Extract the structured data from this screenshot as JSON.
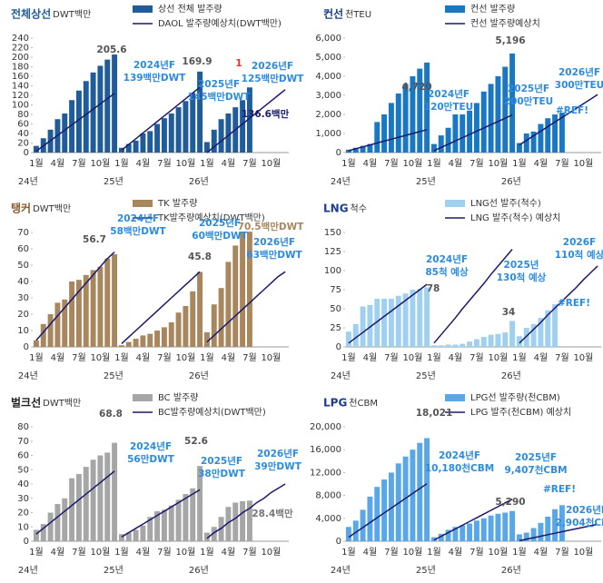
{
  "chart_data": [
    {
      "type": "bar",
      "title": "전체상선",
      "unit": "DWT백만",
      "title_color": "#1f5c99",
      "categories": [
        "1월",
        null,
        null,
        "4월",
        null,
        null,
        "7월",
        null,
        null,
        "10월",
        null,
        null,
        "1월",
        null,
        null,
        "4월",
        null,
        null,
        "7월",
        null,
        null,
        "10월",
        null,
        null,
        "1월",
        null,
        null,
        "4월",
        null,
        null,
        "7월",
        null,
        null,
        "10월",
        null,
        null
      ],
      "year_labels": [
        "24년",
        "25년",
        "26년"
      ],
      "series": [
        {
          "name": "상선 전체 발주량",
          "color": "#1f5c99",
          "values": [
            14,
            30,
            48,
            70,
            82,
            110,
            130,
            150,
            168,
            182,
            195,
            205.6,
            10,
            18,
            25,
            40,
            45,
            60,
            72,
            82,
            95,
            108,
            125,
            169.9,
            22,
            48,
            70,
            82,
            95,
            110,
            136.6,
            null,
            null,
            null,
            null,
            null
          ]
        },
        {
          "name": "DAOL 발주량예상치(DWT백만)",
          "type": "line",
          "color": "#1a1a6e",
          "values": [
            3,
            14,
            25,
            36,
            47,
            58,
            69,
            80,
            91,
            102,
            113,
            124,
            5,
            17,
            29,
            41,
            53,
            65,
            77,
            89,
            101,
            113,
            125,
            137,
            0,
            12,
            24,
            36,
            48,
            60,
            72,
            84,
            96,
            108,
            120,
            132
          ]
        }
      ],
      "ylim": [
        0,
        240
      ],
      "yticks": [
        0,
        20,
        40,
        60,
        80,
        100,
        120,
        140,
        160,
        180,
        200,
        220,
        240
      ],
      "annotations": [
        {
          "text": [
            "205.6"
          ],
          "color": "#555555"
        },
        {
          "text": [
            "2024년F",
            "139백만DWT"
          ],
          "color": "#2a8be0"
        },
        {
          "text": [
            "169.9"
          ],
          "color": "#555555"
        },
        {
          "text": [
            "1"
          ],
          "color": "#e03030"
        },
        {
          "text": [
            "2025년F",
            "145백만DWT"
          ],
          "color": "#2a8be0"
        },
        {
          "text": [
            "2026년F",
            "125백만DWT"
          ],
          "color": "#2a8be0"
        },
        {
          "text": [
            "136.6백만"
          ],
          "color": "#1a1a6e"
        }
      ]
    },
    {
      "type": "bar",
      "title": "컨선",
      "unit": "천TEU",
      "title_color": "#1a3d8c",
      "categories": [
        "1월",
        null,
        null,
        "4월",
        null,
        null,
        "7월",
        null,
        null,
        "10월",
        null,
        null,
        "1월",
        null,
        null,
        "4월",
        null,
        null,
        "7월",
        null,
        null,
        "10월",
        null,
        null,
        "1월",
        null,
        null,
        "4월",
        null,
        null,
        "7월",
        null,
        null,
        "10월",
        null,
        null
      ],
      "year_labels": [
        "24년",
        "25년",
        "26년"
      ],
      "series": [
        {
          "name": "컨선 발주량",
          "color": "#1a78c2",
          "values": [
            150,
            250,
            350,
            450,
            1600,
            2000,
            2600,
            3100,
            3600,
            4000,
            4400,
            4720,
            450,
            900,
            1300,
            2000,
            2000,
            2200,
            2600,
            3200,
            3600,
            4000,
            4500,
            5196,
            500,
            1000,
            1100,
            1500,
            1800,
            2000,
            2100,
            null,
            null,
            null,
            null,
            null
          ]
        },
        {
          "name": "컨선 발주량예상치",
          "type": "line",
          "color": "#1a1a6e",
          "values": [
            100,
            200,
            300,
            400,
            500,
            600,
            700,
            800,
            900,
            1000,
            1100,
            1200,
            100,
            270,
            440,
            610,
            780,
            950,
            1120,
            1290,
            1460,
            1630,
            1800,
            1970,
            400,
            640,
            880,
            1120,
            1360,
            1600,
            1840,
            2080,
            2320,
            2560,
            2800,
            3040
          ]
        }
      ],
      "ylim": [
        0,
        6000
      ],
      "yticks": [
        0,
        {
          "value": 1000,
          "label": "1,000"
        },
        {
          "value": 2000,
          "label": "2,000"
        },
        {
          "value": 3000,
          "label": "3,000"
        },
        {
          "value": 4000,
          "label": "4,000"
        },
        {
          "value": 5000,
          "label": "5,000"
        },
        {
          "value": 6000,
          "label": "6,000"
        }
      ],
      "annotations": [
        {
          "text": [
            "4,720"
          ],
          "color": "#555555"
        },
        {
          "text": [
            "5,196"
          ],
          "color": "#555555"
        },
        {
          "text": [
            "2024년F",
            "120만TEU"
          ],
          "color": "#2a8be0"
        },
        {
          "text": [
            "2025년F",
            "200만TEU"
          ],
          "color": "#2a8be0"
        },
        {
          "text": [
            "2026년F",
            "300만TEU"
          ],
          "color": "#2a8be0"
        },
        {
          "text": [
            "#REF!"
          ],
          "color": "#2a8be0"
        }
      ]
    },
    {
      "type": "bar",
      "title": "탱커",
      "unit": "DWT백만",
      "title_color": "#8b5a2b",
      "categories": [
        "1월",
        null,
        null,
        "4월",
        null,
        null,
        "7월",
        null,
        null,
        "10월",
        null,
        null,
        "1월",
        null,
        null,
        "4월",
        null,
        null,
        "7월",
        null,
        null,
        "10월",
        null,
        null,
        "1월",
        null,
        null,
        "4월",
        null,
        null,
        "7월",
        null,
        null,
        "10월",
        null,
        null
      ],
      "year_labels": [
        "24년",
        "25년",
        "26년"
      ],
      "series": [
        {
          "name": "TK 발주량",
          "color": "#a8875e",
          "values": [
            4,
            14,
            20,
            27,
            29,
            40,
            41,
            44,
            47,
            49,
            54,
            56.7,
            1,
            3,
            5,
            7,
            8,
            10,
            12,
            15,
            21,
            25,
            34,
            45.8,
            9,
            26,
            36,
            52,
            62,
            70.5,
            70.5,
            null,
            null,
            null,
            null,
            null
          ]
        },
        {
          "name": "TK발주량예상치(DWT백만)",
          "type": "line",
          "color": "#1a1a6e",
          "values": [
            4,
            9,
            14,
            19,
            24,
            29,
            34,
            39,
            44,
            49,
            54,
            58,
            2,
            6,
            10,
            14,
            18,
            22,
            26,
            30,
            34,
            38,
            42,
            46,
            3,
            7,
            11,
            15,
            19,
            23,
            27,
            31,
            35,
            39,
            43,
            46
          ]
        }
      ],
      "ylim": [
        0,
        70
      ],
      "yticks": [
        0,
        10,
        20,
        30,
        40,
        50,
        60,
        70
      ],
      "annotations": [
        {
          "text": [
            "2024년F",
            "58백만DWT"
          ],
          "color": "#2a8be0"
        },
        {
          "text": [
            "56.7"
          ],
          "color": "#555555"
        },
        {
          "text": [
            "2025년F",
            "60백만DWT"
          ],
          "color": "#2a8be0"
        },
        {
          "text": [
            "45.8"
          ],
          "color": "#555555"
        },
        {
          "text": [
            "70.5백만DWT"
          ],
          "color": "#a8875e"
        },
        {
          "text": [
            "2026년F",
            "63백만DWT"
          ],
          "color": "#2a8be0"
        }
      ]
    },
    {
      "type": "bar",
      "title": "LNG",
      "unit": "척수",
      "title_color": "#1a3d8c",
      "categories": [
        "1월",
        null,
        null,
        "4월",
        null,
        null,
        "7월",
        null,
        null,
        "10월",
        null,
        null,
        "1월",
        null,
        null,
        "4월",
        null,
        null,
        "7월",
        null,
        null,
        "10월",
        null,
        null,
        "1월",
        null,
        null,
        "4월",
        null,
        null,
        "7월",
        null,
        null,
        "10월",
        null,
        null
      ],
      "year_labels": [
        "24년",
        "25년",
        "26년"
      ],
      "series": [
        {
          "name": "LNG선 발주(척수)",
          "color": "#9fd0f0",
          "values": [
            20,
            30,
            53,
            55,
            63,
            63,
            63,
            67,
            70,
            75,
            76,
            78,
            2,
            2,
            3,
            3,
            4,
            7,
            10,
            13,
            16,
            17,
            19,
            34,
            14,
            25,
            30,
            38,
            48,
            56,
            null,
            null,
            null,
            null,
            null,
            null
          ]
        },
        {
          "name": "LNG 발주(척수) 예상치",
          "type": "line",
          "color": "#1a1a6e",
          "values": [
            5,
            12,
            19,
            26,
            33,
            40,
            47,
            54,
            61,
            68,
            75,
            82,
            5,
            16,
            27,
            38,
            50,
            61,
            72,
            83,
            95,
            106,
            117,
            128,
            5,
            14,
            23,
            32,
            42,
            51,
            60,
            69,
            78,
            88,
            97,
            106
          ]
        }
      ],
      "ylim": [
        0,
        150
      ],
      "yticks": [
        0,
        25,
        50,
        75,
        100,
        125,
        150
      ],
      "annotations": [
        {
          "text": [
            "2024년F",
            "85척 예상"
          ],
          "color": "#2a8be0"
        },
        {
          "text": [
            "78"
          ],
          "color": "#555555"
        },
        {
          "text": [
            "2025년",
            "130척 예상"
          ],
          "color": "#2a8be0"
        },
        {
          "text": [
            "2026F",
            "110척 예상"
          ],
          "color": "#2a8be0"
        },
        {
          "text": [
            "34"
          ],
          "color": "#555555"
        },
        {
          "text": [
            "#REF!"
          ],
          "color": "#2a8be0"
        }
      ]
    },
    {
      "type": "bar",
      "title": "벌크선",
      "unit": "DWT백만",
      "title_color": "#222222",
      "categories": [
        "1월",
        null,
        null,
        "4월",
        null,
        null,
        "7월",
        null,
        null,
        "10월",
        null,
        null,
        "1월",
        null,
        null,
        "4월",
        null,
        null,
        "7월",
        null,
        null,
        "10월",
        null,
        null,
        "1월",
        null,
        null,
        "4월",
        null,
        null,
        "7월",
        null,
        null,
        "10월",
        null,
        null
      ],
      "year_labels": [
        "24년",
        "25년",
        "26년"
      ],
      "series": [
        {
          "name": "BC 발주량",
          "color": "#a6a6a6",
          "values": [
            8,
            12,
            20,
            26,
            30,
            44,
            47,
            52,
            57,
            60,
            62,
            68.8,
            5,
            6,
            8,
            11,
            17,
            21,
            22,
            25,
            29,
            33,
            37,
            52.6,
            6,
            10,
            17,
            24,
            27,
            28,
            28.4,
            null,
            null,
            null,
            null,
            null
          ]
        },
        {
          "name": "BC발주량예상치(DWT백만)",
          "type": "line",
          "color": "#1a1a6e",
          "values": [
            5,
            9,
            13,
            17,
            21,
            25,
            29,
            33,
            37,
            41,
            45,
            49,
            3,
            6,
            9,
            12,
            15,
            18,
            21,
            24,
            27,
            30,
            33,
            36,
            2,
            6,
            9,
            13,
            16,
            20,
            23,
            27,
            30,
            34,
            37,
            40
          ]
        }
      ],
      "ylim": [
        0,
        80
      ],
      "yticks": [
        0,
        10,
        20,
        30,
        40,
        50,
        60,
        70,
        80
      ],
      "annotations": [
        {
          "text": [
            "68.8"
          ],
          "color": "#555555"
        },
        {
          "text": [
            "2024년F",
            "56만DWT"
          ],
          "color": "#2a8be0"
        },
        {
          "text": [
            "52.6"
          ],
          "color": "#555555"
        },
        {
          "text": [
            "2025년F",
            "38만DWT"
          ],
          "color": "#2a8be0"
        },
        {
          "text": [
            "2026년F",
            "39만DWT"
          ],
          "color": "#2a8be0"
        },
        {
          "text": [
            "28.4백만"
          ],
          "color": "#777777"
        }
      ]
    },
    {
      "type": "bar",
      "title": "LPG",
      "unit": "천CBM",
      "title_color": "#1a3d8c",
      "categories": [
        "1월",
        null,
        null,
        "4월",
        null,
        null,
        "7월",
        null,
        null,
        "10월",
        null,
        null,
        "1월",
        null,
        null,
        "4월",
        null,
        null,
        "7월",
        null,
        null,
        "10월",
        null,
        null,
        "1월",
        null,
        null,
        "4월",
        null,
        null,
        "7월",
        null,
        null,
        "10월",
        null,
        null
      ],
      "year_labels": [
        "24년",
        "25년",
        "26년"
      ],
      "series": [
        {
          "name": "LPG선 발주량(천CBM)",
          "color": "#5aa7e8",
          "values": [
            2500,
            3600,
            5500,
            7800,
            9500,
            10800,
            12000,
            13600,
            14800,
            16000,
            17200,
            18021,
            700,
            1300,
            2000,
            2500,
            2800,
            3100,
            3600,
            4000,
            4500,
            4800,
            5000,
            5290,
            1200,
            1500,
            2300,
            3200,
            4300,
            5600,
            6300,
            null,
            null,
            null,
            null,
            null
          ]
        },
        {
          "name": "LPG 발주(천CBM) 예상치",
          "type": "line",
          "color": "#1a1a6e",
          "values": [
            700,
            1550,
            2400,
            3250,
            4100,
            4950,
            5800,
            6650,
            7500,
            8350,
            9200,
            10050,
            200,
            850,
            1500,
            2150,
            2800,
            3450,
            4100,
            4750,
            5400,
            6050,
            6700,
            7350,
            100,
            360,
            620,
            880,
            1140,
            1400,
            1660,
            1920,
            2180,
            2440,
            2700,
            2960
          ]
        }
      ],
      "ylim": [
        0,
        20000
      ],
      "yticks": [
        0,
        {
          "value": 4000,
          "label": "4,000"
        },
        {
          "value": 8000,
          "label": "8,000"
        },
        {
          "value": 12000,
          "label": "12,000"
        },
        {
          "value": 16000,
          "label": "16,000"
        },
        {
          "value": 20000,
          "label": "20,000"
        }
      ],
      "annotations": [
        {
          "text": [
            "18,021"
          ],
          "color": "#555555"
        },
        {
          "text": [
            "2024년F",
            "10,180천CBM"
          ],
          "color": "#2a8be0"
        },
        {
          "text": [
            "2025년F",
            "9,407천CBM"
          ],
          "color": "#2a8be0"
        },
        {
          "text": [
            "5,290"
          ],
          "color": "#555555"
        },
        {
          "text": [
            "#REF!"
          ],
          "color": "#2a8be0"
        },
        {
          "text": [
            "2026년F",
            "2,904천CBM"
          ],
          "color": "#2a8be0"
        }
      ]
    }
  ]
}
